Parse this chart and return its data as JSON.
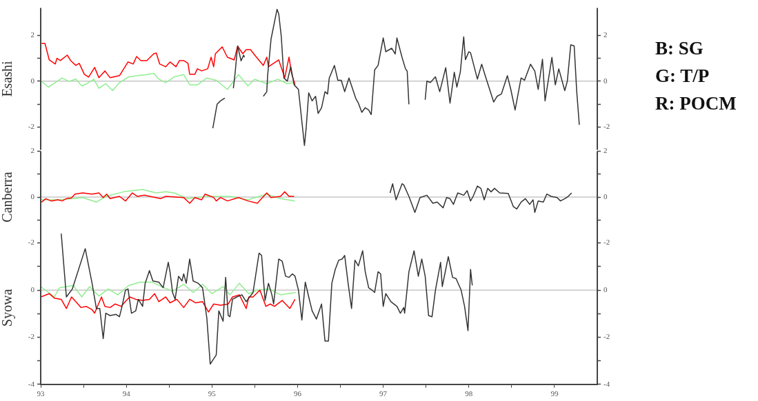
{
  "chart_data": [
    {
      "type": "line",
      "ylabel": "Esashi",
      "xlim": [
        93,
        99.5
      ],
      "ylim": [
        -3,
        3.2
      ],
      "yticks": [
        -2,
        {
          "value": -1,
          "label": null
        },
        0,
        {
          "value": 1,
          "label": null
        },
        2
      ],
      "y2lim": [
        -3,
        3.2
      ],
      "y2ticks": [
        -2,
        {
          "value": -1,
          "label": null
        },
        0,
        {
          "value": 1,
          "label": null
        },
        2
      ],
      "tick_labels": "y",
      "grid": false,
      "marker": "none",
      "annotations": [
        "B: SG",
        "G: T/P",
        "R: POCM"
      ],
      "ref_lines": [
        {
          "axis": "y",
          "value": 0,
          "color": "#aaaaaa"
        }
      ],
      "series": [
        {
          "color": "#333333",
          "x": [
            95.01,
            95.06,
            95.1,
            95.15,
            95.2,
            95.25,
            95.27,
            95.3,
            95.34,
            95.37,
            95.38,
            95.5,
            95.6,
            95.64,
            95.65,
            95.69,
            95.76,
            95.78,
            95.81,
            95.84,
            95.88,
            95.92,
            95.96,
            96.01,
            96.08,
            96.1,
            96.13,
            96.17,
            96.21,
            96.24,
            96.28,
            96.32,
            96.35,
            96.37,
            96.43,
            96.47,
            96.51,
            96.55,
            96.6,
            96.68,
            96.71,
            96.75,
            96.79,
            96.83,
            96.86,
            96.9,
            96.94,
            97.0,
            97.03,
            97.1,
            97.14,
            97.16,
            97.22,
            97.26,
            97.28,
            97.3,
            97.4,
            97.49,
            97.51,
            97.55,
            97.61,
            97.66,
            97.73,
            97.78,
            97.83,
            97.86,
            97.9,
            97.94,
            97.96,
            98.0,
            98.02,
            98.1,
            98.15,
            98.2,
            98.29,
            98.33,
            98.38,
            98.45,
            98.49,
            98.54,
            98.61,
            98.65,
            98.72,
            98.77,
            98.81,
            98.86,
            98.89,
            98.97,
            99.01,
            99.05,
            99.12,
            99.15,
            99.19,
            99.23,
            99.26,
            99.29
          ],
          "values": [
            -2.06,
            -1.01,
            -0.86,
            -0.74,
            null,
            -0.31,
            0.34,
            1.54,
            0.89,
            1.14,
            1.04,
            null,
            -0.66,
            -0.46,
            0.24,
            1.84,
            3.14,
            2.94,
            1.94,
            0.14,
            0,
            0.64,
            -0.16,
            -0.36,
            -2.81,
            -2.06,
            -0.51,
            -0.86,
            -0.66,
            -1.41,
            -1.16,
            -0.46,
            -0.56,
            0.14,
            0.69,
            0.04,
            0.04,
            -0.46,
            0.14,
            -0.76,
            -0.96,
            -1.36,
            -1.16,
            -1.26,
            -1.46,
            0.49,
            0.69,
            1.89,
            1.29,
            1.44,
            1.19,
            1.89,
            1.04,
            0.54,
            0.44,
            -1.01,
            null,
            -0.81,
            0,
            -0.06,
            0.19,
            -0.46,
            0.59,
            -0.96,
            0.39,
            -0.26,
            0.39,
            1.94,
            0.94,
            1.29,
            1.24,
            0.09,
            0.74,
            0.14,
            -0.91,
            -0.66,
            -0.56,
            0.24,
            -0.36,
            -1.26,
            0.14,
            0.04,
            0.74,
            0.44,
            -0.36,
            0.96,
            -0.86,
            1.04,
            -0.16,
            0.54,
            -0.41,
            0,
            1.59,
            1.54,
            -0.46,
            -1.91
          ]
        },
        {
          "color": "#ff0000",
          "x": [
            93.01,
            93.05,
            93.1,
            93.17,
            93.19,
            93.23,
            93.31,
            93.35,
            93.41,
            93.45,
            93.51,
            93.56,
            93.63,
            93.68,
            93.75,
            93.81,
            93.92,
            94.02,
            94.08,
            94.12,
            94.17,
            94.24,
            94.32,
            94.35,
            94.39,
            94.46,
            94.51,
            94.58,
            94.62,
            94.67,
            94.72,
            94.74,
            94.8,
            94.83,
            94.88,
            94.95,
            94.99,
            95.02,
            95.04,
            95.12,
            95.18,
            95.26,
            95.3,
            95.36,
            95.4,
            95.45,
            95.5,
            95.6,
            95.64,
            95.66,
            95.78,
            95.85,
            95.9,
            95.93,
            95.97
          ],
          "values": [
            1.65,
            1.65,
            0.93,
            0.75,
            1.0,
            0.9,
            1.14,
            0.9,
            0.69,
            0.78,
            0.3,
            0.18,
            0.6,
            0.15,
            0.45,
            0.15,
            0.24,
            0.84,
            0.75,
            1.08,
            0.9,
            0.9,
            1.2,
            1.23,
            0.75,
            0.63,
            0.84,
            0.63,
            0.9,
            0.9,
            0.78,
            0.3,
            0.3,
            0.54,
            0.45,
            0.54,
            1.05,
            0.63,
            1.2,
            1.5,
            1.05,
            0.93,
            1.53,
            1.2,
            1.38,
            1.38,
            1.14,
            0.69,
            1.05,
            0.63,
            0.93,
            0.15,
            1.05,
            0.33,
            -0.15
          ]
        },
        {
          "color": "#90ee90",
          "x": [
            93.01,
            93.09,
            93.17,
            93.25,
            93.33,
            93.41,
            93.48,
            93.54,
            93.62,
            93.68,
            93.76,
            93.84,
            93.92,
            94.03,
            94.13,
            94.24,
            94.32,
            94.38,
            94.46,
            94.56,
            94.67,
            94.74,
            94.83,
            94.94,
            95.05,
            95.18,
            95.31,
            95.42,
            95.5,
            95.64,
            95.77,
            95.88,
            95.96
          ],
          "values": [
            0,
            -0.26,
            -0.06,
            0.14,
            -0.01,
            0.09,
            -0.21,
            -0.11,
            0.09,
            -0.31,
            -0.11,
            -0.41,
            -0.06,
            0.19,
            0.24,
            0.29,
            0.34,
            0.09,
            -0.06,
            0.19,
            0.29,
            -0.16,
            -0.16,
            0.14,
            0.04,
            -0.36,
            0.29,
            -0.21,
            0.09,
            -0.11,
            0.09,
            -0.11,
            -0.06
          ]
        }
      ]
    },
    {
      "type": "line",
      "ylabel": "Canberra",
      "xlim": [
        93,
        99.5
      ],
      "ylim": [
        -2,
        2
      ],
      "yticks": [
        -2,
        {
          "value": -1,
          "label": null
        },
        0,
        {
          "value": 1,
          "label": null
        },
        2
      ],
      "y2lim": [
        -2,
        2
      ],
      "y2ticks": [
        -2,
        {
          "value": -1,
          "label": null
        },
        0,
        {
          "value": 1,
          "label": null
        },
        2
      ],
      "tick_labels": "y",
      "grid": false,
      "marker": "none",
      "ref_lines": [
        {
          "axis": "y",
          "value": 0,
          "color": "#aaaaaa"
        }
      ],
      "series": [
        {
          "color": "#333333",
          "x": [
            97.08,
            97.11,
            97.15,
            97.22,
            97.24,
            97.3,
            97.37,
            97.43,
            97.51,
            97.58,
            97.63,
            97.7,
            97.74,
            97.78,
            97.82,
            97.87,
            97.94,
            97.98,
            98.02,
            98.05,
            98.1,
            98.14,
            98.18,
            98.22,
            98.26,
            98.3,
            98.36,
            98.46,
            98.52,
            98.56,
            98.61,
            98.66,
            98.71,
            98.75,
            98.77,
            98.81,
            98.87,
            98.91,
            98.96,
            99.03,
            99.07,
            99.12,
            99.16,
            99.2
          ],
          "values": [
            0.18,
            0.58,
            -0.12,
            0.58,
            0.53,
            0.03,
            -0.67,
            -0.02,
            0.08,
            -0.27,
            -0.22,
            -0.47,
            -0.02,
            -0.07,
            -0.32,
            0.18,
            0.08,
            0.28,
            -0.17,
            0.03,
            0.48,
            0.38,
            -0.12,
            0.38,
            0.23,
            0.38,
            0.18,
            0.16,
            -0.42,
            -0.52,
            -0.22,
            -0.07,
            -0.32,
            -0.12,
            -0.67,
            -0.17,
            -0.22,
            0.13,
            0.03,
            -0.02,
            -0.17,
            -0.07,
            0.03,
            0.18
          ]
        },
        {
          "color": "#ff0000",
          "x": [
            93.01,
            93.06,
            93.12,
            93.2,
            93.25,
            93.3,
            93.36,
            93.4,
            93.49,
            93.6,
            93.68,
            93.73,
            93.77,
            93.81,
            93.92,
            93.99,
            94.07,
            94.13,
            94.21,
            94.4,
            94.46,
            94.67,
            94.74,
            94.8,
            94.88,
            94.92,
            95.02,
            95.05,
            95.1,
            95.18,
            95.31,
            95.42,
            95.53,
            95.64,
            95.69,
            95.8,
            95.85,
            95.9,
            95.96
          ],
          "values": [
            -0.22,
            -0.07,
            -0.17,
            -0.12,
            -0.17,
            -0.07,
            -0.04,
            0.13,
            0.18,
            0.13,
            0.18,
            -0.02,
            0.13,
            -0.07,
            0.03,
            -0.17,
            0.18,
            0.03,
            0.08,
            -0.07,
            0.03,
            -0.02,
            -0.27,
            -0.02,
            -0.12,
            0.13,
            -0.02,
            -0.17,
            -0.02,
            -0.17,
            -0.02,
            -0.17,
            -0.27,
            0.18,
            -0.02,
            0.03,
            0.23,
            0.03,
            0.03
          ]
        },
        {
          "color": "#90ee90",
          "x": [
            93.01,
            93.2,
            93.38,
            93.49,
            93.65,
            93.76,
            93.97,
            94.19,
            94.35,
            94.46,
            94.56,
            94.72,
            94.94,
            95.21,
            95.42,
            95.64,
            95.8,
            95.97
          ],
          "values": [
            -0.12,
            -0.12,
            -0.07,
            -0.02,
            -0.22,
            0.03,
            0.23,
            0.33,
            0.18,
            0.23,
            0.18,
            -0.07,
            0.03,
            0.03,
            -0.12,
            0.13,
            -0.07,
            -0.17
          ]
        }
      ]
    },
    {
      "type": "line",
      "ylabel": "Syowa",
      "xlim": [
        93,
        99.5
      ],
      "xticks": [
        93,
        {
          "value": 93.5,
          "label": null
        },
        94,
        {
          "value": 94.5,
          "label": null
        },
        95,
        {
          "value": 95.5,
          "label": null
        },
        96,
        {
          "value": 96.5,
          "label": null
        },
        97,
        {
          "value": 97.5,
          "label": null
        },
        98,
        {
          "value": 98.5,
          "label": null
        },
        99
      ],
      "ylim": [
        -4,
        2.5
      ],
      "yticks": [
        -4,
        {
          "value": -3,
          "label": null
        },
        -2,
        {
          "value": -1,
          "label": null
        },
        0,
        {
          "value": 1,
          "label": null
        }
      ],
      "y2lim": [
        -4,
        2.5
      ],
      "y2ticks": [
        -4,
        {
          "value": -3,
          "label": null
        },
        -2,
        {
          "value": -1,
          "label": null
        },
        0,
        {
          "value": 1,
          "label": null
        }
      ],
      "grid": false,
      "marker": "none",
      "ref_lines": [
        {
          "axis": "y",
          "value": 0,
          "color": "#aaaaaa"
        }
      ],
      "series": [
        {
          "color": "#333333",
          "x": [
            93.24,
            93.3,
            93.37,
            93.52,
            93.6,
            93.65,
            93.69,
            93.73,
            93.76,
            93.81,
            93.88,
            93.92,
            93.95,
            93.99,
            94.02,
            94.06,
            94.11,
            94.14,
            94.19,
            94.22,
            94.27,
            94.31,
            94.38,
            94.43,
            94.49,
            94.51,
            94.54,
            94.57,
            94.61,
            94.65,
            94.67,
            94.7,
            94.74,
            94.78,
            94.84,
            94.89,
            94.94,
            94.98,
            95.05,
            95.08,
            95.13,
            95.16,
            95.19,
            95.21,
            95.24,
            95.29,
            95.35,
            95.4,
            95.48,
            95.55,
            95.58,
            95.62,
            95.66,
            95.7,
            95.72,
            95.78,
            95.82,
            95.86,
            95.9,
            95.94,
            95.97,
            96.01,
            96.05,
            96.09,
            96.13,
            96.17,
            96.22,
            96.28,
            96.32,
            96.36,
            96.4,
            96.44,
            96.48,
            96.52,
            96.55,
            96.59,
            96.63,
            96.67,
            96.71,
            96.76,
            96.79,
            96.83,
            96.87,
            96.9,
            96.94,
            96.97,
            97.0,
            97.03,
            97.09,
            97.16,
            97.2,
            97.24,
            97.25,
            97.3,
            97.36,
            97.41,
            97.45,
            97.49,
            97.53,
            97.57,
            97.61,
            97.67,
            97.69,
            97.76,
            97.81,
            97.85,
            97.91,
            97.95,
            97.99,
            98.02,
            98.04
          ],
          "values": [
            2.4,
            -0.29,
            0.05,
            1.76,
            0.29,
            -0.78,
            -0.78,
            -2.06,
            -0.98,
            -1.08,
            -1.03,
            -1.13,
            -0.69,
            0,
            0.05,
            -0.98,
            -0.88,
            -0.39,
            -0.69,
            0.29,
            0.83,
            0.39,
            0.34,
            0.1,
            1.18,
            0.78,
            -0.1,
            -0.39,
            0.59,
            0.39,
            0.69,
            0.29,
            1.32,
            0.39,
            0.29,
            0.1,
            -1.18,
            -3.14,
            -2.75,
            -0.88,
            -1.32,
            0.54,
            -1.08,
            -1.13,
            -0.39,
            -0.29,
            -0.2,
            -0.49,
            -0.1,
            1.57,
            1.47,
            -0.44,
            0.29,
            -0.2,
            -0.59,
            1.32,
            1.23,
            0.59,
            0.54,
            0.69,
            0.59,
            0,
            -1.27,
            0.34,
            -0.29,
            -0.88,
            -1.23,
            -0.59,
            -2.16,
            -2.16,
            0.29,
            0.88,
            1.27,
            1.32,
            1.47,
            0.29,
            -0.78,
            1.27,
            1.03,
            1.67,
            0.78,
            0.1,
            0,
            -0.1,
            0.78,
            0.69,
            -0.69,
            -0.15,
            -0.49,
            -0.69,
            -0.98,
            -0.74,
            -0.98,
            0.78,
            1.67,
            0.59,
            1.32,
            0.59,
            -1.08,
            -1.13,
            0,
            1.18,
            0.15,
            1.42,
            0.54,
            0.49,
            0,
            -0.69,
            -1.72,
            0.88,
            0.2
          ]
        },
        {
          "color": "#ff0000",
          "x": [
            93.0,
            93.1,
            93.16,
            93.24,
            93.3,
            93.36,
            93.41,
            93.47,
            93.53,
            93.6,
            93.63,
            93.71,
            93.75,
            93.81,
            93.87,
            93.94,
            94.0,
            94.04,
            94.11,
            94.19,
            94.27,
            94.33,
            94.38,
            94.46,
            94.51,
            94.59,
            94.67,
            94.74,
            94.81,
            94.89,
            94.96,
            95.02,
            95.1,
            95.19,
            95.24,
            95.32,
            95.4,
            95.43,
            95.48,
            95.56,
            95.63,
            95.68,
            95.73,
            95.82,
            95.91,
            95.97
          ],
          "values": [
            -0.29,
            -0.15,
            -0.34,
            -0.39,
            -0.78,
            -0.29,
            -0.49,
            -0.74,
            -0.69,
            -0.83,
            -0.98,
            -0.29,
            -0.69,
            -0.74,
            -0.59,
            -0.69,
            -0.44,
            -0.29,
            -0.39,
            -0.44,
            -0.39,
            -0.15,
            -0.49,
            -0.29,
            -0.54,
            -0.39,
            -0.74,
            -0.39,
            -0.54,
            -0.49,
            -0.93,
            -0.59,
            -0.64,
            -0.59,
            -0.29,
            -0.2,
            -0.78,
            -0.29,
            -0.29,
            0,
            -0.69,
            -0.59,
            -0.69,
            -0.44,
            -0.78,
            -0.39
          ]
        },
        {
          "color": "#90ee90",
          "x": [
            93.0,
            93.16,
            93.22,
            93.38,
            93.48,
            93.57,
            93.68,
            93.79,
            93.9,
            94.03,
            94.16,
            94.3,
            94.41,
            94.54,
            94.67,
            94.78,
            94.89,
            95.0,
            95.13,
            95.21,
            95.32,
            95.43,
            95.53,
            95.67,
            95.8,
            95.98
          ],
          "values": [
            0.15,
            -0.29,
            0.1,
            0.2,
            -0.29,
            0.15,
            -0.25,
            0.05,
            -0.2,
            0.2,
            0.34,
            0.34,
            0.15,
            -0.05,
            0.25,
            -0.1,
            0.25,
            -0.15,
            0.15,
            -0.2,
            0.29,
            -0.15,
            0,
            0.05,
            -0.2,
            -0.1
          ]
        }
      ]
    }
  ]
}
